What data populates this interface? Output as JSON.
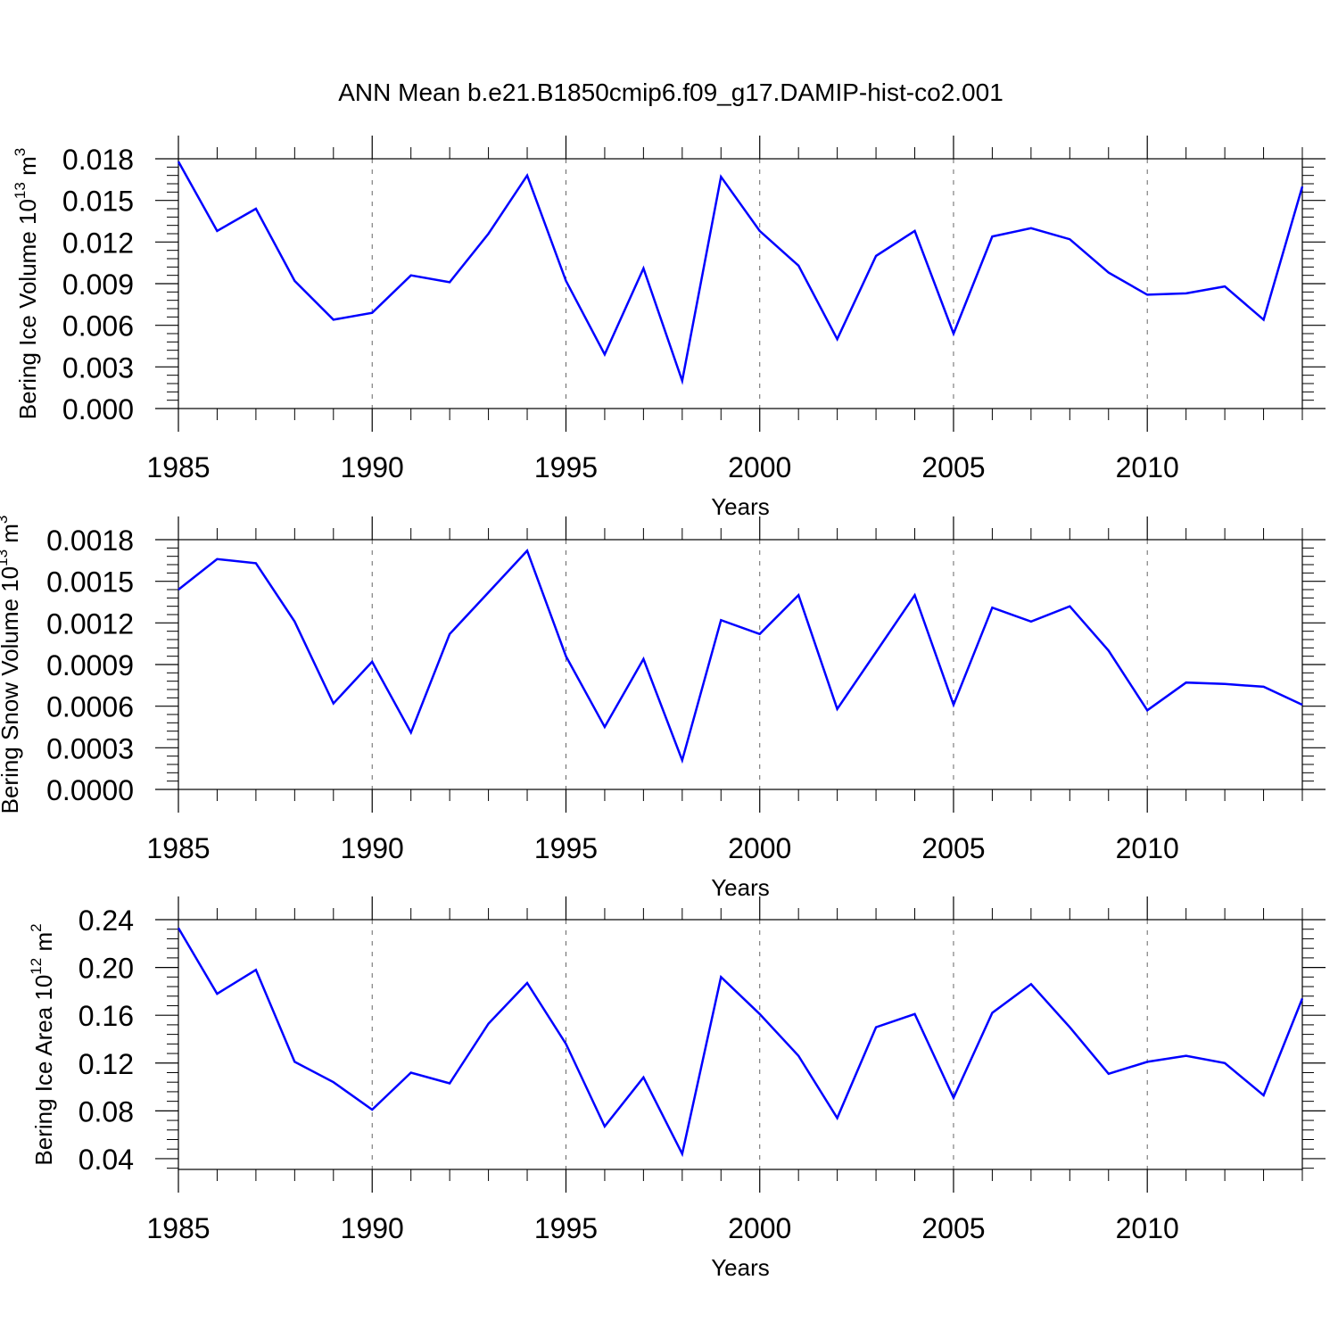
{
  "title": "ANN Mean b.e21.B1850cmip6.f09_g17.DAMIP-hist-co2.001",
  "chart_data": [
    {
      "type": "line",
      "ylabel": "Bering Ice Volume 10",
      "ylabel_sup": "13",
      "ylabel_unit": "m",
      "ylabel_unit_sup": "3",
      "xlabel": "Years",
      "xlim": [
        1985,
        2014
      ],
      "ylim": [
        0.0,
        0.018
      ],
      "xticks": [
        1985,
        1990,
        1995,
        2000,
        2005,
        2010
      ],
      "xtick_labels": [
        "1985",
        "1990",
        "1995",
        "2000",
        "2005",
        "2010"
      ],
      "yticks": [
        0.0,
        0.003,
        0.006,
        0.009,
        0.012,
        0.015,
        0.018
      ],
      "ytick_labels": [
        "0.000",
        "0.003",
        "0.006",
        "0.009",
        "0.012",
        "0.015",
        "0.018"
      ],
      "color": "#0000ff",
      "x": [
        1985,
        1986,
        1987,
        1988,
        1989,
        1990,
        1991,
        1992,
        1993,
        1994,
        1995,
        1996,
        1997,
        1998,
        1999,
        2000,
        2001,
        2002,
        2003,
        2004,
        2005,
        2006,
        2007,
        2008,
        2009,
        2010,
        2011,
        2012,
        2013,
        2014
      ],
      "values": [
        0.0178,
        0.0128,
        0.0144,
        0.0092,
        0.0064,
        0.0069,
        0.0096,
        0.0091,
        0.0126,
        0.0168,
        0.0092,
        0.0039,
        0.0101,
        0.002,
        0.0167,
        0.0128,
        0.0103,
        0.005,
        0.011,
        0.0128,
        0.0054,
        0.0124,
        0.013,
        0.0122,
        0.0098,
        0.0082,
        0.0083,
        0.0088,
        0.0064,
        0.016
      ]
    },
    {
      "type": "line",
      "ylabel": "Bering Snow Volume 10",
      "ylabel_sup": "13",
      "ylabel_unit": "m",
      "ylabel_unit_sup": "3",
      "xlabel": "Years",
      "xlim": [
        1985,
        2014
      ],
      "ylim": [
        0.0,
        0.0018
      ],
      "xticks": [
        1985,
        1990,
        1995,
        2000,
        2005,
        2010
      ],
      "xtick_labels": [
        "1985",
        "1990",
        "1995",
        "2000",
        "2005",
        "2010"
      ],
      "yticks": [
        0.0,
        0.0003,
        0.0006,
        0.0009,
        0.0012,
        0.0015,
        0.0018
      ],
      "ytick_labels": [
        "0.0000",
        "0.0003",
        "0.0006",
        "0.0009",
        "0.0012",
        "0.0015",
        "0.0018"
      ],
      "color": "#0000ff",
      "x": [
        1985,
        1986,
        1987,
        1988,
        1989,
        1990,
        1991,
        1992,
        1993,
        1994,
        1995,
        1996,
        1997,
        1998,
        1999,
        2000,
        2001,
        2002,
        2003,
        2004,
        2005,
        2006,
        2007,
        2008,
        2009,
        2010,
        2011,
        2012,
        2013,
        2014
      ],
      "values": [
        0.00144,
        0.00166,
        0.00163,
        0.00121,
        0.00062,
        0.00092,
        0.00041,
        0.00112,
        0.00142,
        0.00172,
        0.00096,
        0.00045,
        0.00094,
        0.00021,
        0.00122,
        0.00112,
        0.0014,
        0.00058,
        0.00099,
        0.0014,
        0.00061,
        0.00131,
        0.00121,
        0.00132,
        0.001,
        0.00057,
        0.00077,
        0.00076,
        0.00074,
        0.00061
      ]
    },
    {
      "type": "line",
      "ylabel": "Bering Ice Area 10",
      "ylabel_sup": "12",
      "ylabel_unit": "m",
      "ylabel_unit_sup": "2",
      "xlabel": "Years",
      "xlim": [
        1985,
        2014
      ],
      "ylim": [
        0.031,
        0.24
      ],
      "xticks": [
        1985,
        1990,
        1995,
        2000,
        2005,
        2010
      ],
      "xtick_labels": [
        "1985",
        "1990",
        "1995",
        "2000",
        "2005",
        "2010"
      ],
      "yticks": [
        0.04,
        0.08,
        0.12,
        0.16,
        0.2,
        0.24
      ],
      "ytick_labels": [
        "0.04",
        "0.08",
        "0.12",
        "0.16",
        "0.20",
        "0.24"
      ],
      "color": "#0000ff",
      "x": [
        1985,
        1986,
        1987,
        1988,
        1989,
        1990,
        1991,
        1992,
        1993,
        1994,
        1995,
        1996,
        1997,
        1998,
        1999,
        2000,
        2001,
        2002,
        2003,
        2004,
        2005,
        2006,
        2007,
        2008,
        2009,
        2010,
        2011,
        2012,
        2013,
        2014
      ],
      "values": [
        0.233,
        0.178,
        0.198,
        0.121,
        0.104,
        0.081,
        0.112,
        0.103,
        0.153,
        0.187,
        0.136,
        0.067,
        0.108,
        0.044,
        0.192,
        0.161,
        0.126,
        0.074,
        0.15,
        0.161,
        0.091,
        0.162,
        0.186,
        0.15,
        0.111,
        0.121,
        0.126,
        0.12,
        0.093,
        0.174
      ]
    }
  ]
}
